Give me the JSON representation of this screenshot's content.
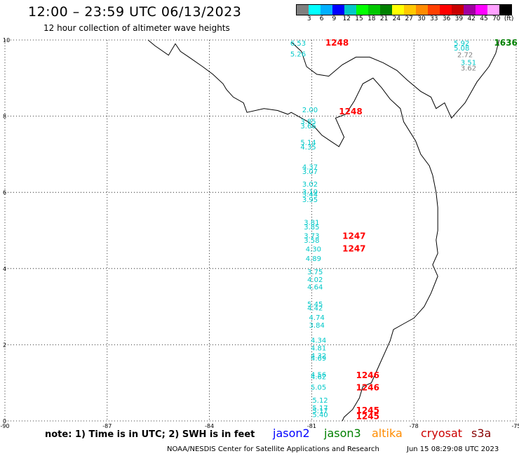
{
  "header": {
    "title": "12:00 – 23:59 UTC 06/13/2023",
    "subtitle": "12 hour collection of altimeter wave heights"
  },
  "colorbar": {
    "colors": [
      "#808080",
      "#00ffff",
      "#00b0ff",
      "#0000ff",
      "#00c8c8",
      "#00ff00",
      "#00c800",
      "#008000",
      "#ffff00",
      "#ffc800",
      "#ff8c00",
      "#ff4000",
      "#ff0000",
      "#c80000",
      "#a000a0",
      "#ff00ff",
      "#ffa0ff",
      "#000000"
    ],
    "labels": [
      "3",
      "6",
      "9",
      "12",
      "15",
      "18",
      "21",
      "24",
      "27",
      "30",
      "33",
      "36",
      "39",
      "42",
      "45",
      "70",
      "(ft)"
    ],
    "label_offsets": [
      1,
      2,
      3,
      4,
      5,
      6,
      7,
      8,
      9,
      10,
      11,
      12,
      13,
      14,
      15,
      16,
      17
    ]
  },
  "axes": {
    "lon_ticks": [
      "-90",
      "-87",
      "-84",
      "-81",
      "-78",
      "-75"
    ],
    "lat_ticks": [
      "10",
      "8",
      "6",
      "4",
      "2",
      "0"
    ],
    "lon_range": [
      -90,
      -75
    ],
    "lat_range": [
      0,
      10
    ]
  },
  "colors": {
    "jason2": "#0000ff",
    "jason3": "#008000",
    "altika": "#ff8c00",
    "cryosat": "#cc0000",
    "s3a": "#880000",
    "swh_cyan": "#00c8c8",
    "swh_gray": "#808080",
    "time_red": "#ff0000",
    "time_green": "#008000"
  },
  "observations": [
    {
      "lon": -81.4,
      "lat": 9.85,
      "text": "6.53",
      "sat": "cyan"
    },
    {
      "lon": -81.4,
      "lat": 9.57,
      "text": "5.26",
      "sat": "cyan"
    },
    {
      "lon": -81.05,
      "lat": 8.1,
      "text": "2.00",
      "sat": "cyan"
    },
    {
      "lon": -81.1,
      "lat": 7.8,
      "text": "3.85",
      "sat": "cyan"
    },
    {
      "lon": -81.1,
      "lat": 7.68,
      "text": "3.66",
      "sat": "cyan"
    },
    {
      "lon": -81.1,
      "lat": 7.25,
      "text": "5.14",
      "sat": "cyan"
    },
    {
      "lon": -81.1,
      "lat": 7.13,
      "text": "4.35",
      "sat": "cyan"
    },
    {
      "lon": -81.05,
      "lat": 6.6,
      "text": "4.37",
      "sat": "cyan"
    },
    {
      "lon": -81.05,
      "lat": 6.48,
      "text": "3.07",
      "sat": "cyan"
    },
    {
      "lon": -81.05,
      "lat": 6.15,
      "text": "3.02",
      "sat": "cyan"
    },
    {
      "lon": -81.05,
      "lat": 5.95,
      "text": "3.19",
      "sat": "cyan"
    },
    {
      "lon": -81.05,
      "lat": 5.88,
      "text": "3.44",
      "sat": "cyan"
    },
    {
      "lon": -81.05,
      "lat": 5.75,
      "text": "3.95",
      "sat": "cyan"
    },
    {
      "lon": -81.0,
      "lat": 5.15,
      "text": "3.81",
      "sat": "cyan"
    },
    {
      "lon": -81.0,
      "lat": 5.03,
      "text": "3.85",
      "sat": "cyan"
    },
    {
      "lon": -81.0,
      "lat": 4.8,
      "text": "3.73",
      "sat": "cyan"
    },
    {
      "lon": -81.0,
      "lat": 4.68,
      "text": "3.58",
      "sat": "cyan"
    },
    {
      "lon": -80.95,
      "lat": 4.45,
      "text": "4.30",
      "sat": "cyan"
    },
    {
      "lon": -80.95,
      "lat": 4.2,
      "text": "4.89",
      "sat": "cyan"
    },
    {
      "lon": -80.9,
      "lat": 3.85,
      "text": "3.75",
      "sat": "cyan"
    },
    {
      "lon": -80.9,
      "lat": 3.65,
      "text": "4.02",
      "sat": "cyan"
    },
    {
      "lon": -80.9,
      "lat": 3.45,
      "text": "4.64",
      "sat": "cyan"
    },
    {
      "lon": -80.9,
      "lat": 3.0,
      "text": "5.45",
      "sat": "cyan"
    },
    {
      "lon": -80.9,
      "lat": 2.9,
      "text": "4.42",
      "sat": "cyan"
    },
    {
      "lon": -80.85,
      "lat": 2.65,
      "text": "4.74",
      "sat": "cyan"
    },
    {
      "lon": -80.85,
      "lat": 2.45,
      "text": "3.84",
      "sat": "cyan"
    },
    {
      "lon": -80.8,
      "lat": 2.05,
      "text": "4.34",
      "sat": "cyan"
    },
    {
      "lon": -80.8,
      "lat": 1.85,
      "text": "4.81",
      "sat": "cyan"
    },
    {
      "lon": -80.8,
      "lat": 1.65,
      "text": "4.32",
      "sat": "cyan"
    },
    {
      "lon": -80.8,
      "lat": 1.58,
      "text": "4.69",
      "sat": "cyan"
    },
    {
      "lon": -80.8,
      "lat": 1.15,
      "text": "4.56",
      "sat": "cyan"
    },
    {
      "lon": -80.8,
      "lat": 1.1,
      "text": "4.62",
      "sat": "cyan"
    },
    {
      "lon": -80.8,
      "lat": 0.82,
      "text": "5.05",
      "sat": "cyan"
    },
    {
      "lon": -80.75,
      "lat": 0.48,
      "text": "5.12",
      "sat": "cyan"
    },
    {
      "lon": -80.75,
      "lat": 0.28,
      "text": "5.17",
      "sat": "cyan"
    },
    {
      "lon": -80.75,
      "lat": 0.2,
      "text": "5.17",
      "sat": "cyan"
    },
    {
      "lon": -80.75,
      "lat": 0.1,
      "text": "5.40",
      "sat": "cyan"
    },
    {
      "lon": -76.6,
      "lat": 9.85,
      "text": "5.92",
      "sat": "cyan"
    },
    {
      "lon": -76.6,
      "lat": 9.72,
      "text": "5.08",
      "sat": "cyan"
    },
    {
      "lon": -76.5,
      "lat": 9.55,
      "text": "2.72",
      "sat": "gray"
    },
    {
      "lon": -76.4,
      "lat": 9.35,
      "text": "3.51",
      "sat": "cyan"
    },
    {
      "lon": -76.4,
      "lat": 9.2,
      "text": "3.62",
      "sat": "gray"
    }
  ],
  "time_labels": [
    {
      "lon": -80.6,
      "lat": 9.85,
      "text": "1248",
      "color": "red"
    },
    {
      "lon": -80.2,
      "lat": 8.05,
      "text": "1248",
      "color": "red"
    },
    {
      "lon": -80.1,
      "lat": 4.78,
      "text": "1247",
      "color": "red"
    },
    {
      "lon": -80.1,
      "lat": 4.45,
      "text": "1247",
      "color": "red"
    },
    {
      "lon": -79.7,
      "lat": 1.12,
      "text": "1246",
      "color": "red"
    },
    {
      "lon": -79.7,
      "lat": 0.8,
      "text": "1246",
      "color": "red"
    },
    {
      "lon": -79.7,
      "lat": 0.2,
      "text": "1245",
      "color": "red"
    },
    {
      "lon": -79.7,
      "lat": 0.05,
      "text": "1245",
      "color": "red"
    },
    {
      "lon": -75.65,
      "lat": 9.85,
      "text": "1636",
      "color": "green"
    }
  ],
  "coastline": {
    "main": [
      [
        -85.8,
        10.0
      ],
      [
        -85.6,
        9.85
      ],
      [
        -85.2,
        9.6
      ],
      [
        -85.0,
        9.9
      ],
      [
        -84.85,
        9.7
      ],
      [
        -84.6,
        9.55
      ],
      [
        -84.2,
        9.3
      ],
      [
        -83.9,
        9.1
      ],
      [
        -83.6,
        8.85
      ],
      [
        -83.5,
        8.7
      ],
      [
        -83.3,
        8.5
      ],
      [
        -83.0,
        8.35
      ],
      [
        -82.9,
        8.1
      ],
      [
        -82.4,
        8.2
      ],
      [
        -82.0,
        8.15
      ],
      [
        -81.7,
        8.05
      ],
      [
        -81.6,
        8.1
      ],
      [
        -81.3,
        7.95
      ],
      [
        -81.1,
        7.85
      ],
      [
        -80.9,
        7.7
      ],
      [
        -80.7,
        7.5
      ],
      [
        -80.45,
        7.35
      ],
      [
        -80.2,
        7.2
      ],
      [
        -80.05,
        7.45
      ],
      [
        -80.3,
        7.95
      ],
      [
        -80.0,
        8.05
      ],
      [
        -79.75,
        8.4
      ],
      [
        -79.5,
        8.85
      ],
      [
        -79.2,
        9.0
      ],
      [
        -78.95,
        8.75
      ],
      [
        -78.7,
        8.45
      ],
      [
        -78.4,
        8.2
      ],
      [
        -78.3,
        7.85
      ],
      [
        -77.95,
        7.35
      ],
      [
        -77.8,
        7.0
      ],
      [
        -77.55,
        6.7
      ],
      [
        -77.45,
        6.45
      ],
      [
        -77.35,
        6.0
      ],
      [
        -77.3,
        5.6
      ],
      [
        -77.3,
        5.0
      ],
      [
        -77.35,
        4.75
      ],
      [
        -77.3,
        4.4
      ],
      [
        -77.45,
        4.1
      ],
      [
        -77.3,
        3.8
      ],
      [
        -77.5,
        3.35
      ],
      [
        -77.7,
        3.0
      ],
      [
        -78.0,
        2.7
      ],
      [
        -78.3,
        2.55
      ],
      [
        -78.6,
        2.4
      ],
      [
        -78.7,
        2.1
      ],
      [
        -78.85,
        1.8
      ],
      [
        -79.0,
        1.5
      ],
      [
        -79.25,
        1.0
      ],
      [
        -79.5,
        0.9
      ],
      [
        -79.6,
        0.6
      ],
      [
        -79.8,
        0.3
      ],
      [
        -80.05,
        0.1
      ],
      [
        -80.1,
        0.0
      ]
    ],
    "caribbean": [
      [
        -81.6,
        9.95
      ],
      [
        -81.3,
        9.7
      ],
      [
        -81.15,
        9.3
      ],
      [
        -80.85,
        9.1
      ],
      [
        -80.5,
        9.05
      ],
      [
        -80.1,
        9.35
      ],
      [
        -79.7,
        9.55
      ],
      [
        -79.3,
        9.55
      ],
      [
        -78.9,
        9.4
      ],
      [
        -78.5,
        9.2
      ],
      [
        -78.2,
        8.95
      ],
      [
        -77.8,
        8.65
      ],
      [
        -77.5,
        8.5
      ],
      [
        -77.35,
        8.2
      ],
      [
        -77.1,
        8.35
      ],
      [
        -76.9,
        7.95
      ],
      [
        -76.75,
        8.1
      ],
      [
        -76.5,
        8.35
      ],
      [
        -76.15,
        8.9
      ],
      [
        -75.8,
        9.3
      ],
      [
        -75.6,
        9.65
      ],
      [
        -75.5,
        10.0
      ]
    ]
  },
  "footer": {
    "note": "note:  1) Time is in UTC;  2) SWH is in feet",
    "credit": "NOAA/NESDIS Center for Satellite Applications and Research",
    "timestamp": "Jun 15 08:29:08 UTC 2023",
    "satellites": {
      "jason2": "jason2",
      "jason3": "jason3",
      "altika": "altika",
      "cryosat": "cryosat",
      "s3a": "s3a"
    }
  }
}
